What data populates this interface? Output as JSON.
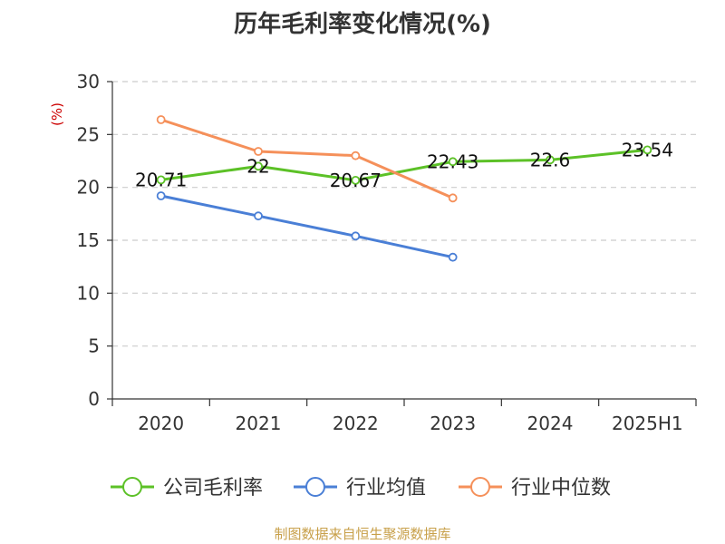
{
  "chart_data": {
    "type": "line",
    "title": "历年毛利率变化情况(%)",
    "ylabel": "(%)",
    "xlabel": "",
    "categories": [
      "2020",
      "2021",
      "2022",
      "2023",
      "2024",
      "2025H1"
    ],
    "ylim": [
      0,
      30
    ],
    "yticks": [
      0,
      5,
      10,
      15,
      20,
      25,
      30
    ],
    "grid": true,
    "legend_position": "bottom",
    "series": [
      {
        "name": "公司毛利率",
        "color": "#5cc127",
        "values": [
          20.71,
          22,
          20.67,
          22.43,
          22.6,
          23.54
        ],
        "labels": [
          "20.71",
          "22",
          "20.67",
          "22.43",
          "22.6",
          "23.54"
        ]
      },
      {
        "name": "行业均值",
        "color": "#4a7fd6",
        "values": [
          19.2,
          17.3,
          15.4,
          13.4,
          null,
          null
        ]
      },
      {
        "name": "行业中位数",
        "color": "#f5905a",
        "values": [
          26.4,
          23.4,
          23.0,
          19.0,
          null,
          null
        ]
      }
    ]
  },
  "footer": {
    "source": "制图数据来自恒生聚源数据库"
  }
}
